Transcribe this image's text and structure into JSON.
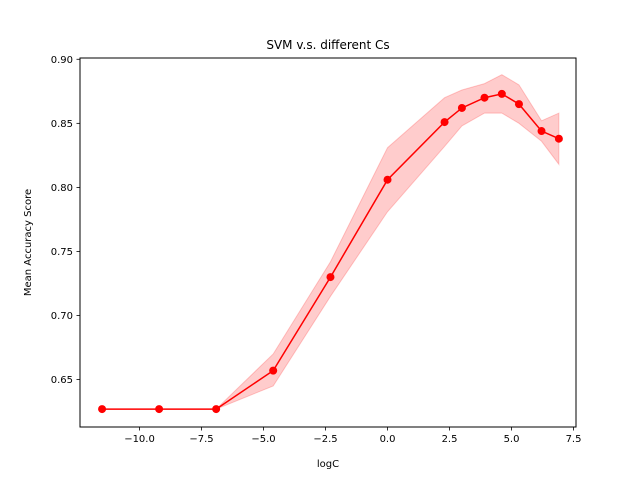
{
  "chart_data": {
    "type": "line",
    "title": "SVM v.s. different Cs",
    "xlabel": "logC",
    "ylabel": "Mean Accuracy Score",
    "xlim": [
      -12.4,
      7.6
    ],
    "ylim": [
      0.613,
      0.901
    ],
    "xticks": [
      -10.0,
      -7.5,
      -5.0,
      -2.5,
      0.0,
      2.5,
      5.0,
      7.5
    ],
    "xtick_labels": [
      "−10.0",
      "−7.5",
      "−5.0",
      "−2.5",
      "0.0",
      "2.5",
      "5.0",
      "7.5"
    ],
    "yticks": [
      0.65,
      0.7,
      0.75,
      0.8,
      0.85,
      0.9
    ],
    "ytick_labels": [
      "0.65",
      "0.70",
      "0.75",
      "0.80",
      "0.85",
      "0.90"
    ],
    "grid": false,
    "series": [
      {
        "color": "#ff0000",
        "band_color": "#ff0000",
        "x": [
          -11.51,
          -9.21,
          -6.91,
          -4.61,
          -2.3,
          0.0,
          2.3,
          3.0,
          3.91,
          4.61,
          5.3,
          6.21,
          6.91
        ],
        "y": [
          0.627,
          0.627,
          0.627,
          0.657,
          0.73,
          0.806,
          0.851,
          0.862,
          0.87,
          0.873,
          0.865,
          0.844,
          0.838
        ],
        "lower": [
          0.627,
          0.627,
          0.627,
          0.645,
          0.715,
          0.781,
          0.832,
          0.848,
          0.858,
          0.858,
          0.85,
          0.836,
          0.818
        ],
        "upper": [
          0.627,
          0.627,
          0.627,
          0.67,
          0.742,
          0.831,
          0.87,
          0.876,
          0.881,
          0.888,
          0.88,
          0.852,
          0.858
        ]
      }
    ]
  }
}
